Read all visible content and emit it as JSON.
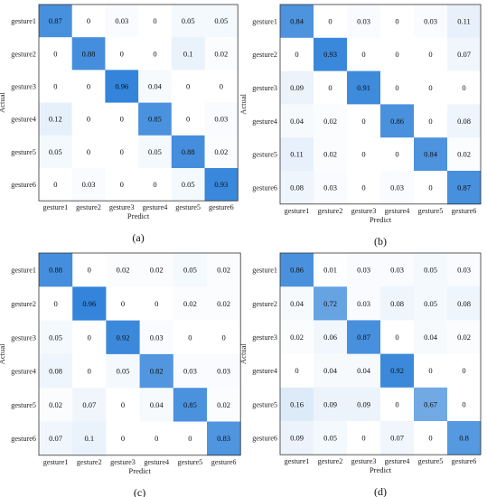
{
  "chart_data": [
    {
      "type": "heatmap",
      "panel_label": "(a)",
      "xlabel": "Predict",
      "ylabel": "Actual",
      "x_categories": [
        "gesture1",
        "gesture2",
        "gesture3",
        "gesture4",
        "gesture5",
        "gesture6"
      ],
      "y_categories": [
        "gesture1",
        "gesture2",
        "gesture3",
        "gesture4",
        "gesture5",
        "gesture6"
      ],
      "values": [
        [
          "0.87",
          "0",
          "0.03",
          "0",
          "0.05",
          "0.05"
        ],
        [
          "0",
          "0.88",
          "0",
          "0",
          "0.1",
          "0.02"
        ],
        [
          "0",
          "0",
          "0.96",
          "0.04",
          "0",
          "0"
        ],
        [
          "0.12",
          "0",
          "0",
          "0.85",
          "0",
          "0.03"
        ],
        [
          "0.05",
          "0",
          "0",
          "0.05",
          "0.88",
          "0.02"
        ],
        [
          "0",
          "0.03",
          "0",
          "0",
          "0.05",
          "0.93"
        ]
      ],
      "colors": {
        "low": "#ffffff",
        "high": "#2b7fd8"
      }
    },
    {
      "type": "heatmap",
      "panel_label": "(b)",
      "xlabel": "Predict",
      "ylabel": "Actual",
      "x_categories": [
        "gesture1",
        "gesture2",
        "gesture3",
        "gesture4",
        "gesture5",
        "gesture6"
      ],
      "y_categories": [
        "gesture1",
        "gesture2",
        "gesture3",
        "gesture4",
        "gesture5",
        "gesture6"
      ],
      "values": [
        [
          "0.84",
          "0",
          "0.03",
          "0",
          "0.03",
          "0.11"
        ],
        [
          "0",
          "0.93",
          "0",
          "0",
          "0",
          "0.07"
        ],
        [
          "0.09",
          "0",
          "0.91",
          "0",
          "0",
          "0"
        ],
        [
          "0.04",
          "0.02",
          "0",
          "0.86",
          "0",
          "0.08"
        ],
        [
          "0.11",
          "0.02",
          "0",
          "0",
          "0.84",
          "0.02"
        ],
        [
          "0.08",
          "0.03",
          "0",
          "0.03",
          "0",
          "0.87"
        ]
      ],
      "colors": {
        "low": "#ffffff",
        "high": "#2b7fd8"
      }
    },
    {
      "type": "heatmap",
      "panel_label": "(c)",
      "xlabel": "Predict",
      "ylabel": "Actual",
      "x_categories": [
        "gesture1",
        "gesture2",
        "gesture3",
        "gesture4",
        "gesture5",
        "gesture6"
      ],
      "y_categories": [
        "gesture1",
        "gesture2",
        "gesture3",
        "gesture4",
        "gesture5",
        "gesture6"
      ],
      "values": [
        [
          "0.88",
          "0",
          "0.02",
          "0.02",
          "0.05",
          "0.02"
        ],
        [
          "0",
          "0.96",
          "0",
          "0",
          "0.02",
          "0.02"
        ],
        [
          "0.05",
          "0",
          "0.92",
          "0.03",
          "0",
          "0"
        ],
        [
          "0.08",
          "0",
          "0.05",
          "0.82",
          "0.03",
          "0.03"
        ],
        [
          "0.02",
          "0.07",
          "0",
          "0.04",
          "0.85",
          "0.02"
        ],
        [
          "0.07",
          "0.1",
          "0",
          "0",
          "0",
          "0.83"
        ]
      ],
      "colors": {
        "low": "#ffffff",
        "high": "#2b7fd8"
      }
    },
    {
      "type": "heatmap",
      "panel_label": "(d)",
      "xlabel": "Predict",
      "ylabel": "Actual",
      "x_categories": [
        "gesture1",
        "gesture2",
        "gesture3",
        "gesture4",
        "gesture5",
        "gesture6"
      ],
      "y_categories": [
        "gesture1",
        "gesture2",
        "gesture3",
        "gesture4",
        "gesture5",
        "gesture6"
      ],
      "values": [
        [
          "0.86",
          "0.01",
          "0.03",
          "0.03",
          "0.05",
          "0.03"
        ],
        [
          "0.04",
          "0.72",
          "0.03",
          "0.08",
          "0.05",
          "0.08"
        ],
        [
          "0.02",
          "0.06",
          "0.87",
          "0",
          "0.04",
          "0.02"
        ],
        [
          "0",
          "0.04",
          "0.04",
          "0.92",
          "0",
          "0"
        ],
        [
          "0.16",
          "0.09",
          "0.09",
          "0",
          "0.67",
          "0"
        ],
        [
          "0.09",
          "0.05",
          "0",
          "0.07",
          "0",
          "0.8"
        ]
      ],
      "colors": {
        "low": "#ffffff",
        "high": "#2b7fd8"
      }
    }
  ]
}
